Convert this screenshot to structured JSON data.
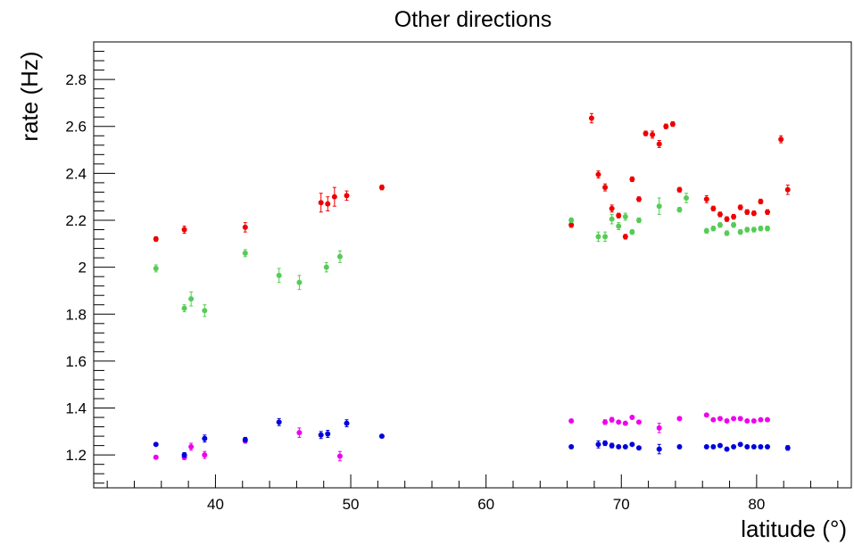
{
  "chart_data": {
    "type": "scatter",
    "title": "Other directions",
    "xlabel": "latitude (°)",
    "ylabel": "rate (Hz)",
    "xlim": [
      31,
      87
    ],
    "ylim": [
      1.06,
      2.96
    ],
    "x_ticks": [
      40,
      50,
      60,
      70,
      80
    ],
    "y_ticks": [
      1.2,
      1.4,
      1.6,
      1.8,
      2,
      2.2,
      2.4,
      2.6,
      2.8
    ],
    "x_tick_labels": [
      "40",
      "50",
      "60",
      "70",
      "80"
    ],
    "y_tick_labels": [
      "1.2",
      "1.4",
      "1.6",
      "1.8",
      "2",
      "2.2",
      "2.4",
      "2.6",
      "2.8"
    ],
    "legend": "none",
    "grid": false,
    "series": [
      {
        "color": "#ee0000",
        "points": [
          {
            "x": 35.6,
            "y": 2.12,
            "err": 0.01
          },
          {
            "x": 37.7,
            "y": 2.16,
            "err": 0.015
          },
          {
            "x": 42.2,
            "y": 2.17,
            "err": 0.02
          },
          {
            "x": 47.8,
            "y": 2.275,
            "err": 0.04
          },
          {
            "x": 48.3,
            "y": 2.27,
            "err": 0.03
          },
          {
            "x": 48.8,
            "y": 2.3,
            "err": 0.04
          },
          {
            "x": 49.7,
            "y": 2.305,
            "err": 0.02
          },
          {
            "x": 52.3,
            "y": 2.34,
            "err": 0.01
          },
          {
            "x": 66.3,
            "y": 2.18,
            "err": 0.01
          },
          {
            "x": 67.8,
            "y": 2.635,
            "err": 0.02
          },
          {
            "x": 68.3,
            "y": 2.395,
            "err": 0.015
          },
          {
            "x": 68.8,
            "y": 2.34,
            "err": 0.015
          },
          {
            "x": 69.3,
            "y": 2.25,
            "err": 0.015
          },
          {
            "x": 69.8,
            "y": 2.22,
            "err": 0.01
          },
          {
            "x": 70.3,
            "y": 2.13,
            "err": 0.01
          },
          {
            "x": 70.8,
            "y": 2.375,
            "err": 0.01
          },
          {
            "x": 71.3,
            "y": 2.29,
            "err": 0.01
          },
          {
            "x": 71.8,
            "y": 2.57,
            "err": 0.01
          },
          {
            "x": 72.3,
            "y": 2.565,
            "err": 0.015
          },
          {
            "x": 72.8,
            "y": 2.525,
            "err": 0.015
          },
          {
            "x": 73.3,
            "y": 2.6,
            "err": 0.01
          },
          {
            "x": 73.8,
            "y": 2.61,
            "err": 0.01
          },
          {
            "x": 74.3,
            "y": 2.33,
            "err": 0.01
          },
          {
            "x": 76.3,
            "y": 2.29,
            "err": 0.015
          },
          {
            "x": 76.8,
            "y": 2.25,
            "err": 0.01
          },
          {
            "x": 77.3,
            "y": 2.225,
            "err": 0.01
          },
          {
            "x": 77.8,
            "y": 2.205,
            "err": 0.01
          },
          {
            "x": 78.3,
            "y": 2.215,
            "err": 0.01
          },
          {
            "x": 78.8,
            "y": 2.255,
            "err": 0.01
          },
          {
            "x": 79.3,
            "y": 2.235,
            "err": 0.01
          },
          {
            "x": 79.8,
            "y": 2.23,
            "err": 0.01
          },
          {
            "x": 80.3,
            "y": 2.28,
            "err": 0.01
          },
          {
            "x": 80.8,
            "y": 2.235,
            "err": 0.01
          },
          {
            "x": 81.8,
            "y": 2.545,
            "err": 0.015
          },
          {
            "x": 82.3,
            "y": 2.33,
            "err": 0.02
          }
        ]
      },
      {
        "color": "#55cc55",
        "points": [
          {
            "x": 35.6,
            "y": 1.995,
            "err": 0.015
          },
          {
            "x": 37.7,
            "y": 1.825,
            "err": 0.015
          },
          {
            "x": 38.2,
            "y": 1.865,
            "err": 0.03
          },
          {
            "x": 39.2,
            "y": 1.815,
            "err": 0.025
          },
          {
            "x": 42.2,
            "y": 2.06,
            "err": 0.015
          },
          {
            "x": 44.7,
            "y": 1.965,
            "err": 0.03
          },
          {
            "x": 46.2,
            "y": 1.935,
            "err": 0.03
          },
          {
            "x": 48.2,
            "y": 2.0,
            "err": 0.02
          },
          {
            "x": 49.2,
            "y": 2.045,
            "err": 0.025
          },
          {
            "x": 66.3,
            "y": 2.2,
            "err": 0.01
          },
          {
            "x": 68.3,
            "y": 2.13,
            "err": 0.02
          },
          {
            "x": 68.8,
            "y": 2.13,
            "err": 0.02
          },
          {
            "x": 69.3,
            "y": 2.205,
            "err": 0.02
          },
          {
            "x": 69.8,
            "y": 2.175,
            "err": 0.015
          },
          {
            "x": 70.3,
            "y": 2.215,
            "err": 0.015
          },
          {
            "x": 70.8,
            "y": 2.15,
            "err": 0.01
          },
          {
            "x": 71.3,
            "y": 2.2,
            "err": 0.01
          },
          {
            "x": 72.8,
            "y": 2.26,
            "err": 0.035
          },
          {
            "x": 74.3,
            "y": 2.245,
            "err": 0.01
          },
          {
            "x": 74.8,
            "y": 2.295,
            "err": 0.02
          },
          {
            "x": 76.3,
            "y": 2.155,
            "err": 0.01
          },
          {
            "x": 76.8,
            "y": 2.165,
            "err": 0.01
          },
          {
            "x": 77.3,
            "y": 2.18,
            "err": 0.01
          },
          {
            "x": 77.8,
            "y": 2.145,
            "err": 0.01
          },
          {
            "x": 78.3,
            "y": 2.18,
            "err": 0.01
          },
          {
            "x": 78.8,
            "y": 2.15,
            "err": 0.01
          },
          {
            "x": 79.3,
            "y": 2.16,
            "err": 0.01
          },
          {
            "x": 79.8,
            "y": 2.16,
            "err": 0.01
          },
          {
            "x": 80.3,
            "y": 2.165,
            "err": 0.01
          },
          {
            "x": 80.8,
            "y": 2.165,
            "err": 0.01
          }
        ]
      },
      {
        "color": "#ee00ee",
        "points": [
          {
            "x": 35.6,
            "y": 1.19,
            "err": 0.005
          },
          {
            "x": 37.7,
            "y": 1.19,
            "err": 0.01
          },
          {
            "x": 38.2,
            "y": 1.235,
            "err": 0.015
          },
          {
            "x": 39.2,
            "y": 1.2,
            "err": 0.015
          },
          {
            "x": 42.2,
            "y": 1.26,
            "err": 0.01
          },
          {
            "x": 46.2,
            "y": 1.295,
            "err": 0.02
          },
          {
            "x": 49.2,
            "y": 1.195,
            "err": 0.02
          },
          {
            "x": 66.3,
            "y": 1.345,
            "err": 0.005
          },
          {
            "x": 68.8,
            "y": 1.34,
            "err": 0.01
          },
          {
            "x": 69.3,
            "y": 1.35,
            "err": 0.01
          },
          {
            "x": 69.8,
            "y": 1.34,
            "err": 0.005
          },
          {
            "x": 70.3,
            "y": 1.335,
            "err": 0.005
          },
          {
            "x": 70.8,
            "y": 1.36,
            "err": 0.005
          },
          {
            "x": 71.3,
            "y": 1.34,
            "err": 0.005
          },
          {
            "x": 72.8,
            "y": 1.315,
            "err": 0.02
          },
          {
            "x": 74.3,
            "y": 1.355,
            "err": 0.005
          },
          {
            "x": 76.3,
            "y": 1.37,
            "err": 0.005
          },
          {
            "x": 76.8,
            "y": 1.35,
            "err": 0.005
          },
          {
            "x": 77.3,
            "y": 1.355,
            "err": 0.005
          },
          {
            "x": 77.8,
            "y": 1.345,
            "err": 0.005
          },
          {
            "x": 78.3,
            "y": 1.355,
            "err": 0.005
          },
          {
            "x": 78.8,
            "y": 1.355,
            "err": 0.005
          },
          {
            "x": 79.3,
            "y": 1.345,
            "err": 0.005
          },
          {
            "x": 79.8,
            "y": 1.345,
            "err": 0.005
          },
          {
            "x": 80.3,
            "y": 1.35,
            "err": 0.005
          },
          {
            "x": 80.8,
            "y": 1.35,
            "err": 0.005
          }
        ]
      },
      {
        "color": "#0000dd",
        "points": [
          {
            "x": 35.6,
            "y": 1.245,
            "err": 0.005
          },
          {
            "x": 37.7,
            "y": 1.2,
            "err": 0.01
          },
          {
            "x": 39.2,
            "y": 1.27,
            "err": 0.015
          },
          {
            "x": 42.2,
            "y": 1.265,
            "err": 0.01
          },
          {
            "x": 44.7,
            "y": 1.34,
            "err": 0.015
          },
          {
            "x": 47.8,
            "y": 1.285,
            "err": 0.015
          },
          {
            "x": 48.3,
            "y": 1.29,
            "err": 0.015
          },
          {
            "x": 49.7,
            "y": 1.335,
            "err": 0.015
          },
          {
            "x": 52.3,
            "y": 1.28,
            "err": 0.005
          },
          {
            "x": 66.3,
            "y": 1.235,
            "err": 0.005
          },
          {
            "x": 68.3,
            "y": 1.245,
            "err": 0.015
          },
          {
            "x": 68.8,
            "y": 1.25,
            "err": 0.01
          },
          {
            "x": 69.3,
            "y": 1.24,
            "err": 0.01
          },
          {
            "x": 69.8,
            "y": 1.235,
            "err": 0.005
          },
          {
            "x": 70.3,
            "y": 1.235,
            "err": 0.005
          },
          {
            "x": 70.8,
            "y": 1.245,
            "err": 0.005
          },
          {
            "x": 71.3,
            "y": 1.23,
            "err": 0.005
          },
          {
            "x": 72.8,
            "y": 1.225,
            "err": 0.02
          },
          {
            "x": 74.3,
            "y": 1.235,
            "err": 0.005
          },
          {
            "x": 76.3,
            "y": 1.235,
            "err": 0.005
          },
          {
            "x": 76.8,
            "y": 1.235,
            "err": 0.005
          },
          {
            "x": 77.3,
            "y": 1.24,
            "err": 0.005
          },
          {
            "x": 77.8,
            "y": 1.225,
            "err": 0.005
          },
          {
            "x": 78.3,
            "y": 1.235,
            "err": 0.005
          },
          {
            "x": 78.8,
            "y": 1.245,
            "err": 0.005
          },
          {
            "x": 79.3,
            "y": 1.235,
            "err": 0.005
          },
          {
            "x": 79.8,
            "y": 1.235,
            "err": 0.005
          },
          {
            "x": 80.3,
            "y": 1.235,
            "err": 0.005
          },
          {
            "x": 80.8,
            "y": 1.235,
            "err": 0.005
          },
          {
            "x": 82.3,
            "y": 1.23,
            "err": 0.01
          }
        ]
      }
    ]
  }
}
